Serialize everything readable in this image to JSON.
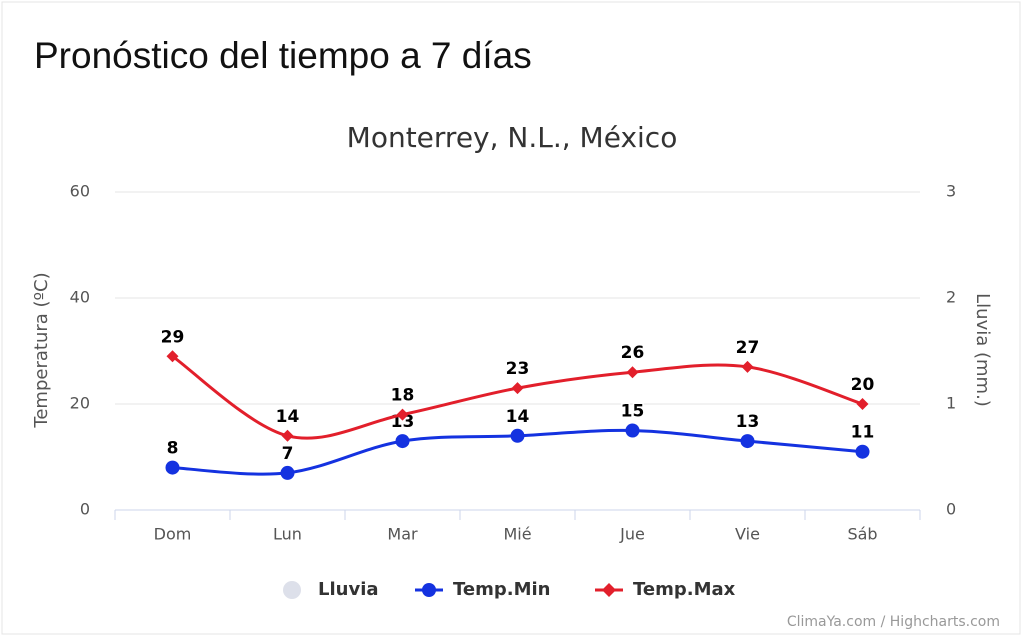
{
  "page_title": "Pronóstico del tiempo a 7 días",
  "chart_data": {
    "type": "line",
    "title": "Monterrey, N.L., México",
    "categories": [
      "Dom",
      "Lun",
      "Mar",
      "Mié",
      "Jue",
      "Vie",
      "Sáb"
    ],
    "y_label": "Temperatura (ºC)",
    "y2_label": "Lluvia (mm.)",
    "ylim": [
      0,
      60
    ],
    "yticks": [
      0,
      20,
      40,
      60
    ],
    "y2lim": [
      0,
      3
    ],
    "y2ticks": [
      0,
      1,
      2,
      3
    ],
    "grid": true,
    "series": [
      {
        "name": "Lluvia",
        "type": "column",
        "axis": "y2",
        "color": "#dde0ea",
        "values": [
          0,
          0,
          0,
          0,
          0,
          0,
          0
        ]
      },
      {
        "name": "Temp.Min",
        "type": "line",
        "marker": "circle",
        "color": "#1432e0",
        "values": [
          8,
          7,
          13,
          14,
          15,
          13,
          11
        ]
      },
      {
        "name": "Temp.Max",
        "type": "line",
        "marker": "diamond",
        "color": "#e21f2b",
        "values": [
          29,
          14,
          18,
          23,
          26,
          27,
          20
        ]
      }
    ],
    "credits": "ClimaYa.com / Highcharts.com"
  }
}
